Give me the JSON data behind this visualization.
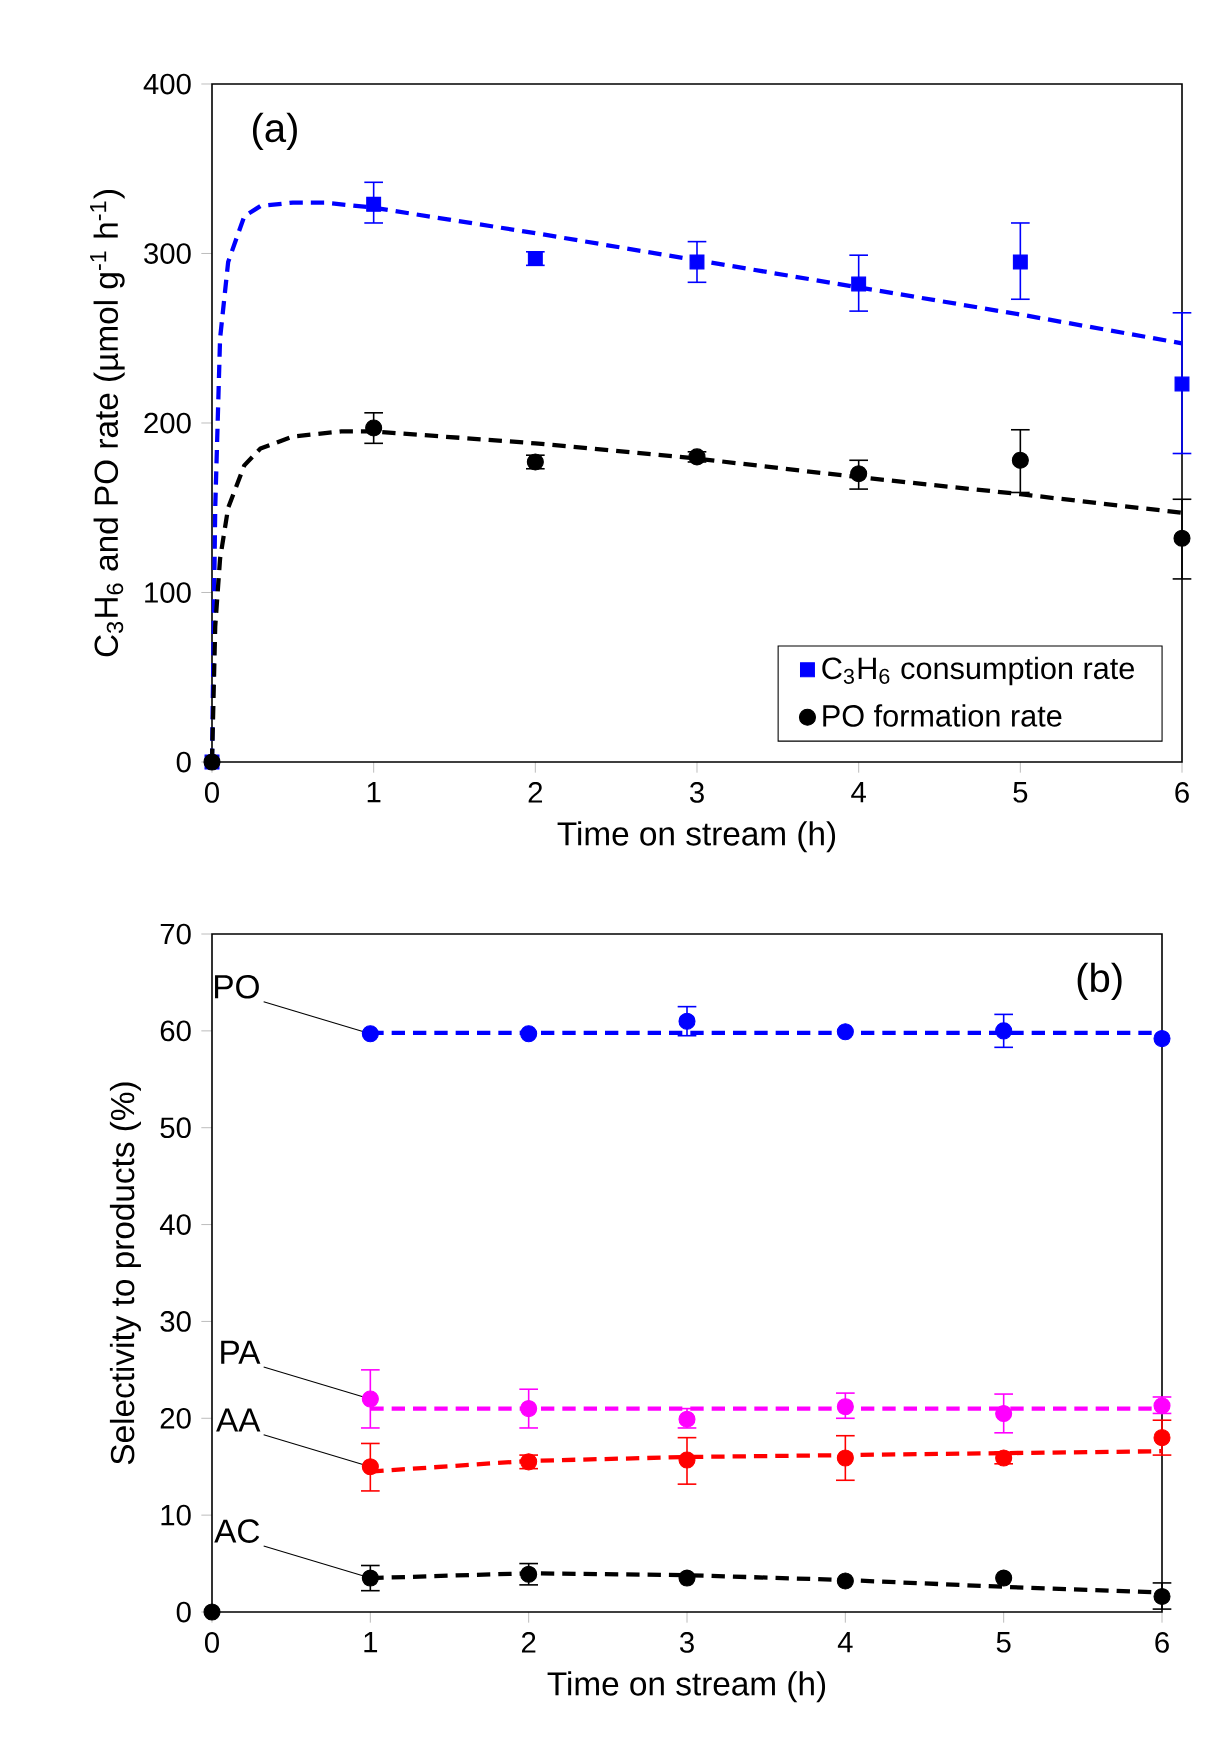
{
  "chart_data": [
    {
      "type": "scatter",
      "xlabel": "Time on stream (h)",
      "ylabel": "C$_{3}$H$_{6}$ and PO rate (µmol g$^{-1}$ h$^{-1}$)",
      "annotations": [
        "(a)"
      ],
      "xlim": [
        0,
        6
      ],
      "xticks": [
        0,
        1,
        2,
        3,
        4,
        5,
        6
      ],
      "ylim": [
        0,
        400
      ],
      "yticks": [
        0,
        100,
        200,
        300,
        400
      ],
      "legend": "bottom right",
      "series": [
        {
          "name": "C$_{3}$H$_{6}$ consumption rate",
          "type": "scatter",
          "marker": "square",
          "color": "#0000ff",
          "x": [
            0,
            1,
            2,
            3,
            4,
            5,
            6
          ],
          "values": [
            0,
            329,
            297,
            295,
            282,
            295,
            223
          ],
          "errors": [
            null,
            [
              318,
              342
            ],
            [
              293,
              301
            ],
            [
              283,
              307
            ],
            [
              266,
              299
            ],
            [
              273,
              318
            ],
            [
              182,
              265
            ]
          ]
        },
        {
          "name": "PO formation rate",
          "type": "scatter",
          "marker": "circle",
          "color": "#000000",
          "x": [
            0,
            1,
            2,
            3,
            4,
            5,
            6
          ],
          "values": [
            0,
            197,
            177,
            180,
            170,
            178,
            132
          ],
          "errors": [
            null,
            [
              188,
              206
            ],
            [
              173,
              181
            ],
            [
              177,
              183
            ],
            [
              161,
              178
            ],
            [
              159,
              196
            ],
            [
              108,
              155
            ]
          ]
        },
        {
          "type": "line",
          "line_style": "dashed",
          "marker": "none",
          "color": "#0000ff",
          "x": [
            0,
            0.02,
            0.05,
            0.1,
            0.2,
            0.3,
            0.5,
            0.7,
            1,
            2,
            3,
            4,
            5,
            6
          ],
          "values": [
            0,
            150,
            250,
            295,
            322,
            328,
            330,
            330,
            327,
            312,
            296,
            280,
            264,
            247
          ]
        },
        {
          "type": "line",
          "line_style": "dashed",
          "marker": "none",
          "color": "#000000",
          "x": [
            0,
            0.02,
            0.05,
            0.1,
            0.2,
            0.3,
            0.5,
            0.8,
            1,
            2,
            3,
            4,
            5,
            6
          ],
          "values": [
            0,
            80,
            120,
            150,
            175,
            185,
            192,
            195,
            195,
            188,
            179,
            168,
            158,
            147
          ]
        }
      ]
    },
    {
      "type": "scatter",
      "xlabel": "Time on stream (h)",
      "ylabel": "Selectivity to products (%)",
      "annotations": [
        "(b)"
      ],
      "xlim": [
        0,
        6
      ],
      "xticks": [
        0,
        1,
        2,
        3,
        4,
        5,
        6
      ],
      "ylim": [
        0,
        70
      ],
      "yticks": [
        0,
        10,
        20,
        30,
        40,
        50,
        60,
        70
      ],
      "series": [
        {
          "name": "PO",
          "type": "scatter",
          "marker": "circle",
          "color": "#0000ff",
          "x": [
            1,
            2,
            3,
            4,
            5,
            6
          ],
          "values": [
            59.7,
            59.7,
            61,
            59.9,
            60,
            59.2
          ],
          "errors": [
            null,
            null,
            [
              59.5,
              62.5
            ],
            null,
            [
              58.3,
              61.7
            ],
            null
          ]
        },
        {
          "name": "PA",
          "type": "scatter",
          "marker": "circle",
          "color": "#ff00ff",
          "x": [
            1,
            2,
            3,
            4,
            5,
            6
          ],
          "values": [
            22,
            21,
            19.9,
            21.2,
            20.5,
            21.3
          ],
          "errors": [
            [
              19,
              25
            ],
            [
              19,
              23
            ],
            [
              19,
              21
            ],
            [
              20,
              22.6
            ],
            [
              18.5,
              22.5
            ],
            [
              20.5,
              22.2
            ]
          ]
        },
        {
          "name": "AA",
          "type": "scatter",
          "marker": "circle",
          "color": "#ff0000",
          "x": [
            1,
            2,
            3,
            4,
            5,
            6
          ],
          "values": [
            15,
            15.5,
            15.7,
            15.9,
            15.9,
            18
          ],
          "errors": [
            [
              12.5,
              17.4
            ],
            [
              14.8,
              16.2
            ],
            [
              13.2,
              18
            ],
            [
              13.6,
              18.2
            ],
            [
              15.3,
              16.5
            ],
            [
              16.2,
              19.8
            ]
          ]
        },
        {
          "name": "AC",
          "type": "scatter",
          "marker": "circle",
          "color": "#000000",
          "x": [
            1,
            2,
            3,
            4,
            5,
            6
          ],
          "values": [
            3.5,
            3.9,
            3.5,
            3.2,
            3.5,
            1.6
          ],
          "errors": [
            [
              2.2,
              4.8
            ],
            [
              2.8,
              5
            ],
            null,
            null,
            null,
            [
              0.3,
              3
            ]
          ]
        },
        {
          "type": "scatter",
          "marker": "circle",
          "color": "#000000",
          "x": [
            0
          ],
          "values": [
            0
          ]
        },
        {
          "type": "line",
          "line_style": "dashed",
          "marker": "none",
          "color": "#0000ff",
          "x": [
            1,
            2,
            3,
            4,
            5,
            6
          ],
          "values": [
            59.8,
            59.8,
            59.8,
            59.8,
            59.8,
            59.8
          ]
        },
        {
          "type": "line",
          "line_style": "dashed",
          "marker": "none",
          "color": "#ff00ff",
          "x": [
            1,
            2,
            3,
            4,
            5,
            6
          ],
          "values": [
            21,
            21,
            21,
            21,
            21,
            21
          ]
        },
        {
          "type": "line",
          "line_style": "dashed",
          "marker": "none",
          "color": "#ff0000",
          "x": [
            1,
            2,
            3,
            4,
            5,
            6
          ],
          "values": [
            14.5,
            15.6,
            16.0,
            16.2,
            16.4,
            16.6
          ]
        },
        {
          "type": "line",
          "line_style": "dashed",
          "marker": "none",
          "color": "#000000",
          "x": [
            1,
            2,
            3,
            4,
            5,
            6
          ],
          "values": [
            3.5,
            4.0,
            3.8,
            3.3,
            2.6,
            2.0
          ]
        }
      ]
    }
  ]
}
